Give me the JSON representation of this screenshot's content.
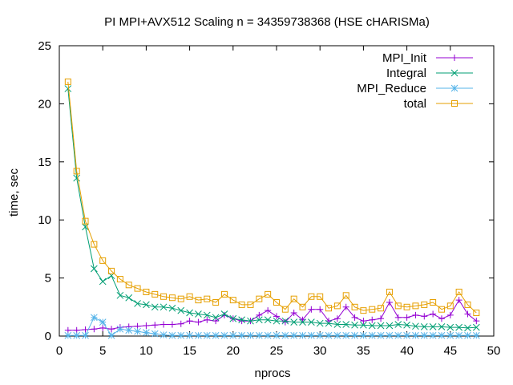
{
  "chart_data": {
    "type": "line",
    "title": "PI MPI+AVX512 Scaling n = 34359738368 (HSE cHARISMa)",
    "xlabel": "nprocs",
    "ylabel": "time, sec",
    "xlim": [
      0,
      50
    ],
    "ylim": [
      0,
      25
    ],
    "xticks": [
      "0",
      "5",
      "10",
      "15",
      "20",
      "25",
      "30",
      "35",
      "40",
      "45",
      "50"
    ],
    "yticks": [
      "0",
      "5",
      "10",
      "15",
      "20",
      "25"
    ],
    "grid": false,
    "legend_position": "top-right",
    "x": [
      1,
      2,
      3,
      4,
      5,
      6,
      7,
      8,
      9,
      10,
      11,
      12,
      13,
      14,
      15,
      16,
      17,
      18,
      19,
      20,
      21,
      22,
      23,
      24,
      25,
      26,
      27,
      28,
      29,
      30,
      31,
      32,
      33,
      34,
      35,
      36,
      37,
      38,
      39,
      40,
      41,
      42,
      43,
      44,
      45,
      46,
      47,
      48
    ],
    "series": [
      {
        "name": "MPI_Init",
        "color": "#9400d3",
        "marker": "plus",
        "values": [
          0.5,
          0.5,
          0.55,
          0.6,
          0.7,
          0.6,
          0.75,
          0.8,
          0.85,
          0.9,
          0.95,
          1.0,
          1.0,
          1.05,
          1.3,
          1.2,
          1.4,
          1.3,
          1.8,
          1.5,
          1.3,
          1.3,
          1.8,
          2.2,
          1.7,
          1.2,
          2.0,
          1.4,
          2.3,
          2.3,
          1.3,
          1.5,
          2.5,
          1.6,
          1.3,
          1.4,
          1.5,
          2.9,
          1.6,
          1.6,
          1.8,
          1.7,
          1.9,
          1.5,
          1.8,
          3.1,
          1.9,
          1.3
        ]
      },
      {
        "name": "Integral",
        "color": "#009e73",
        "marker": "x",
        "values": [
          21.3,
          13.6,
          9.4,
          5.8,
          4.7,
          5.2,
          3.5,
          3.3,
          2.8,
          2.7,
          2.5,
          2.5,
          2.4,
          2.2,
          2.0,
          1.9,
          1.8,
          1.6,
          1.9,
          1.5,
          1.4,
          1.3,
          1.4,
          1.4,
          1.3,
          1.3,
          1.2,
          1.2,
          1.2,
          1.1,
          1.1,
          1.0,
          1.0,
          0.95,
          0.95,
          0.9,
          0.9,
          0.9,
          1.0,
          0.95,
          0.85,
          0.8,
          0.8,
          0.8,
          0.75,
          0.75,
          0.7,
          0.75
        ]
      },
      {
        "name": "MPI_Reduce",
        "color": "#56b4e9",
        "marker": "star",
        "values": [
          0.05,
          0.05,
          0.05,
          1.6,
          1.2,
          0.05,
          0.6,
          0.5,
          0.4,
          0.3,
          0.2,
          0.1,
          0.05,
          0.05,
          0.05,
          0.05,
          0.05,
          0.05,
          0.05,
          0.05,
          0.05,
          0.05,
          0.05,
          0.05,
          0.05,
          0.05,
          0.05,
          0.05,
          0.05,
          0.05,
          0.05,
          0.05,
          0.05,
          0.05,
          0.05,
          0.05,
          0.05,
          0.05,
          0.05,
          0.05,
          0.05,
          0.05,
          0.05,
          0.05,
          0.05,
          0.05,
          0.05,
          0.05
        ]
      },
      {
        "name": "total",
        "color": "#e69f00",
        "marker": "square",
        "values": [
          21.9,
          14.2,
          9.9,
          7.9,
          6.5,
          5.6,
          4.9,
          4.4,
          4.1,
          3.8,
          3.6,
          3.4,
          3.3,
          3.2,
          3.4,
          3.1,
          3.2,
          2.9,
          3.6,
          3.1,
          2.7,
          2.7,
          3.2,
          3.6,
          2.9,
          2.3,
          3.2,
          2.5,
          3.4,
          3.4,
          2.4,
          2.6,
          3.5,
          2.5,
          2.2,
          2.3,
          2.4,
          3.8,
          2.6,
          2.5,
          2.6,
          2.7,
          2.9,
          2.3,
          2.6,
          3.8,
          2.7,
          2.0
        ]
      }
    ]
  }
}
